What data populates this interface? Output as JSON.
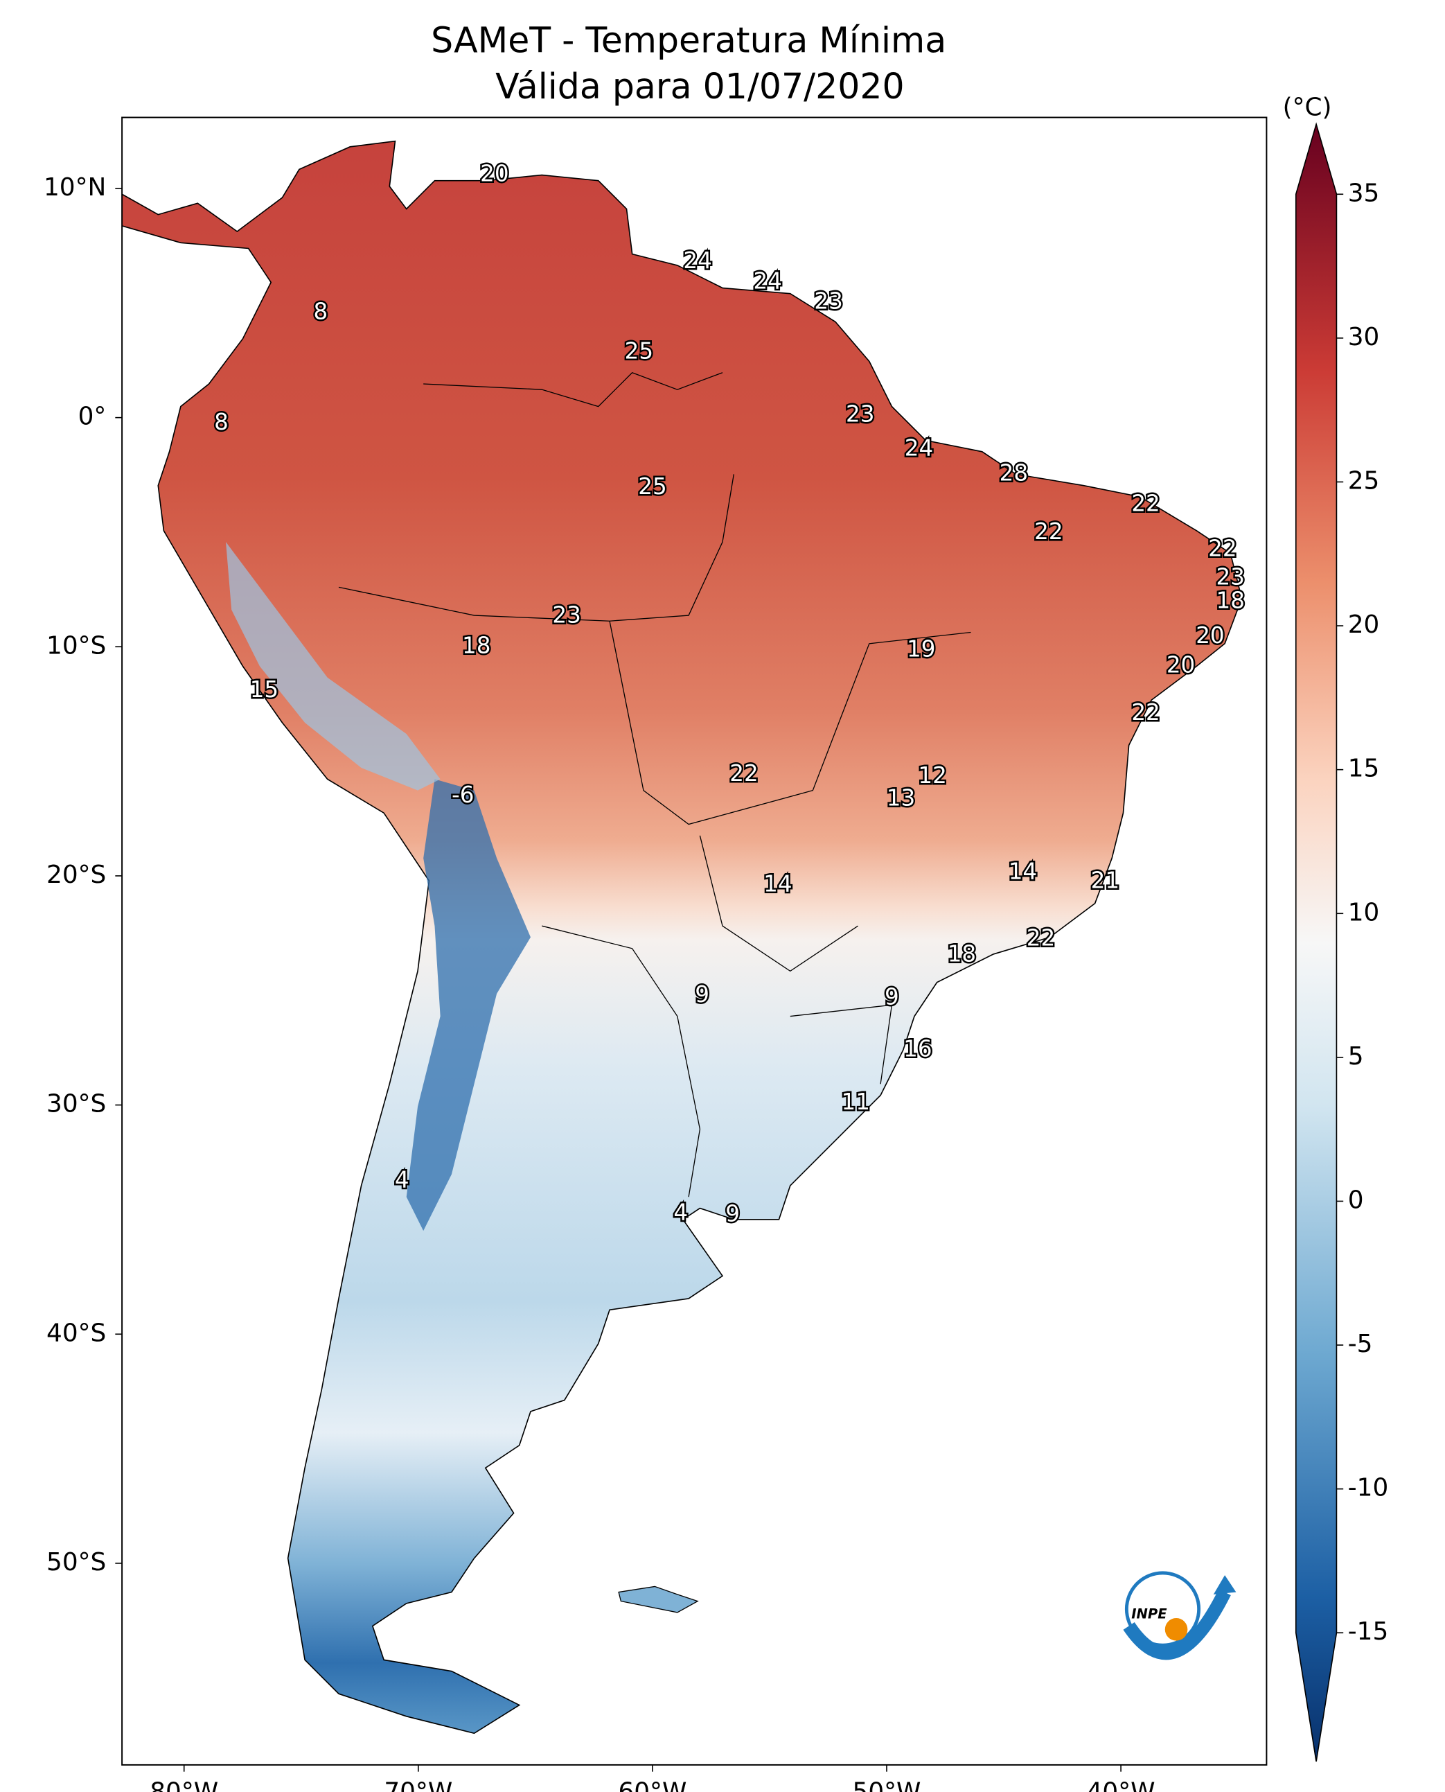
{
  "title": "SAMeT - Temperatura Mínima",
  "subtitle": "Válida para 01/07/2020",
  "map": {
    "xlim": [
      -82.65,
      -33.78
    ],
    "ylim": [
      -58.8,
      13.1
    ],
    "xticks": [
      {
        "value": -80,
        "label": "80°W"
      },
      {
        "value": -70,
        "label": "70°W"
      },
      {
        "value": -60,
        "label": "60°W"
      },
      {
        "value": -50,
        "label": "50°W"
      },
      {
        "value": -40,
        "label": "40°W"
      }
    ],
    "yticks": [
      {
        "value": 10,
        "label": "10°N"
      },
      {
        "value": 0,
        "label": "0°"
      },
      {
        "value": -10,
        "label": "10°S"
      },
      {
        "value": -20,
        "label": "20°S"
      },
      {
        "value": -30,
        "label": "30°S"
      },
      {
        "value": -40,
        "label": "40°S"
      },
      {
        "value": -50,
        "label": "50°S"
      }
    ],
    "labels": [
      20,
      8,
      24,
      24,
      23,
      25,
      8,
      23,
      24,
      28,
      25,
      22,
      22,
      22,
      23,
      18,
      23,
      18,
      19,
      20,
      20,
      15,
      22,
      12,
      22,
      -6,
      13,
      14,
      21,
      14,
      22,
      18,
      9,
      9,
      16,
      11,
      4,
      4,
      9
    ]
  },
  "colorbar": {
    "unit": "(°C)",
    "lim": [
      -15,
      35
    ],
    "ticks": [
      -15,
      -10,
      -5,
      0,
      5,
      10,
      15,
      20,
      25,
      30,
      35
    ]
  },
  "logo": "INPE"
}
